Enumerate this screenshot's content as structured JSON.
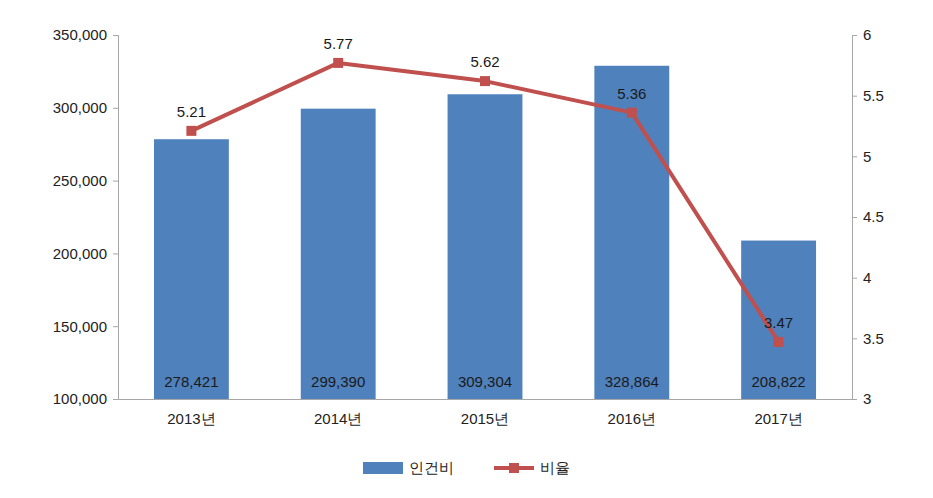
{
  "chart_data": {
    "type": "bar",
    "categories": [
      "2013년",
      "2014년",
      "2015년",
      "2016년",
      "2017년"
    ],
    "series": [
      {
        "name": "인건비",
        "type": "bar",
        "color": "#4f81bd",
        "values": [
          278421,
          299390,
          309304,
          328864,
          208822
        ],
        "value_labels": [
          "278,421",
          "299,390",
          "309,304",
          "328,864",
          "208,822"
        ]
      },
      {
        "name": "비율",
        "type": "line",
        "color": "#c0504d",
        "marker": "square",
        "axis": "y2",
        "values": [
          5.21,
          5.77,
          5.62,
          5.36,
          3.47
        ]
      }
    ],
    "ylim": [
      100000,
      350000
    ],
    "yticks": [
      {
        "value": 100000,
        "label": "100,000"
      },
      {
        "value": 150000,
        "label": "150,000"
      },
      {
        "value": 200000,
        "label": "200,000"
      },
      {
        "value": 250000,
        "label": "250,000"
      },
      {
        "value": 300000,
        "label": "300,000"
      },
      {
        "value": 350000,
        "label": "350,000"
      }
    ],
    "y2lim": [
      3,
      6
    ],
    "y2ticks": [
      3,
      3.5,
      4,
      4.5,
      5,
      5.5,
      6
    ],
    "data_labels": true,
    "legend": "bottom",
    "grid": false
  }
}
